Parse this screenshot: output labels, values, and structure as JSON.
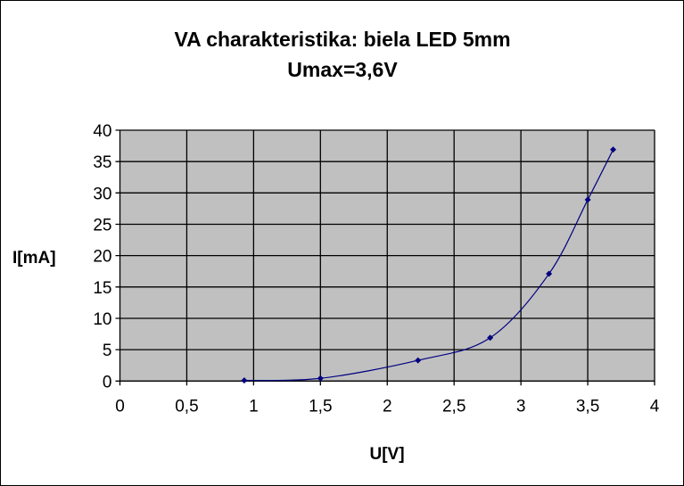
{
  "chart_data": {
    "type": "line",
    "title": [
      "VA charakteristika: biela LED 5mm",
      "Umax=3,6V"
    ],
    "xlabel": "U[V]",
    "ylabel": "I[mA]",
    "xlim": [
      0,
      4
    ],
    "ylim": [
      0,
      40
    ],
    "x_ticks": [
      "0",
      "0,5",
      "1",
      "1,5",
      "2",
      "2,5",
      "3",
      "3,5",
      "4"
    ],
    "y_ticks": [
      "0",
      "5",
      "10",
      "15",
      "20",
      "25",
      "30",
      "35",
      "40"
    ],
    "grid": true,
    "legend": "none",
    "series": [
      {
        "name": "I",
        "color": "#000080",
        "x": [
          0.93,
          1.5,
          2.23,
          2.77,
          3.21,
          3.5,
          3.69
        ],
        "y": [
          0.1,
          0.43,
          3.3,
          6.9,
          17.1,
          28.9,
          36.9
        ]
      }
    ],
    "plot_bg": "#c0c0c0"
  }
}
